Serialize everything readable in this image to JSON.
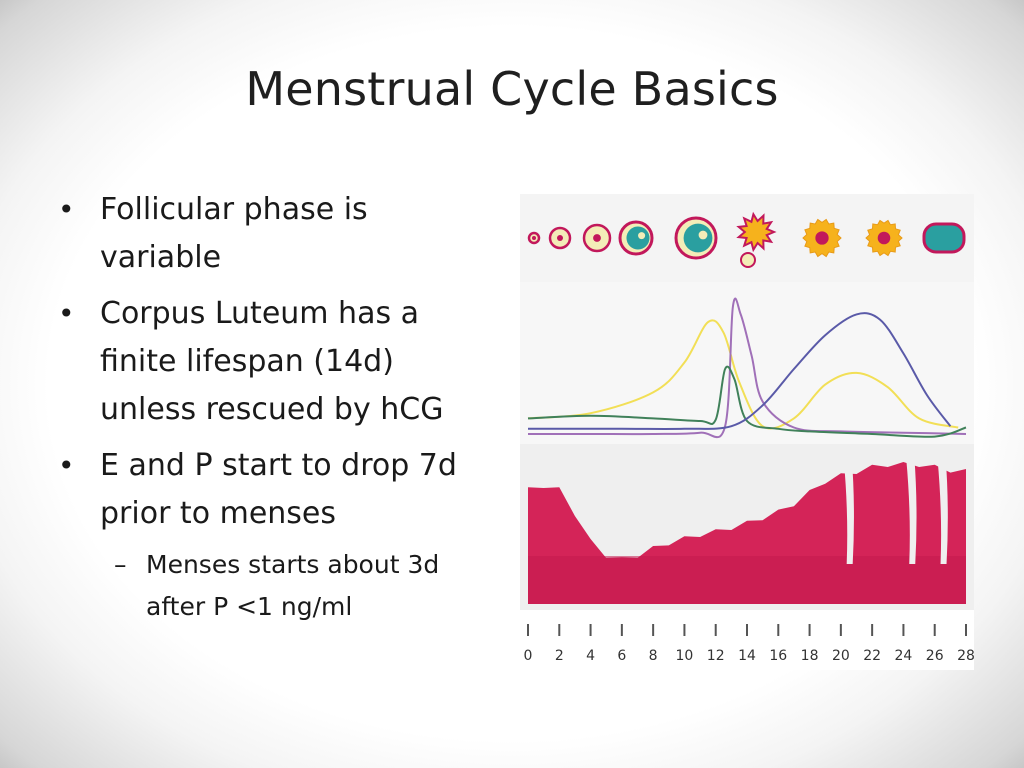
{
  "slide": {
    "title": "Menstrual Cycle Basics",
    "bullets": [
      {
        "text": "Follicular phase is variable"
      },
      {
        "text": "Corpus Luteum has a finite lifespan (14d) unless rescued by hCG"
      },
      {
        "text": "E and P start to drop 7d prior to menses"
      }
    ],
    "sub_bullets": [
      {
        "text": "Menses starts about 3d after P <1 ng/ml"
      }
    ],
    "bullet_marker": "•",
    "sub_bullet_marker": "–"
  },
  "chart_data": {
    "type": "line",
    "x_ticks": [
      "0",
      "2",
      "4",
      "6",
      "8",
      "10",
      "12",
      "14",
      "16",
      "18",
      "20",
      "22",
      "24",
      "26",
      "28"
    ],
    "xlim": [
      0,
      28
    ],
    "series": [
      {
        "color": "#f2df56",
        "x": [
          0,
          4,
          8,
          10,
          11.5,
          12.5,
          13.5,
          15,
          17,
          19,
          21,
          23,
          25,
          27.5
        ],
        "y": [
          0.12,
          0.16,
          0.32,
          0.55,
          0.86,
          0.78,
          0.4,
          0.06,
          0.12,
          0.38,
          0.47,
          0.36,
          0.12,
          0.05
        ]
      },
      {
        "color": "#a070b8",
        "x": [
          0,
          4,
          8,
          11,
          12.6,
          13.1,
          13.6,
          14.3,
          15,
          17,
          20,
          24,
          28
        ],
        "y": [
          0.0,
          0.0,
          0.0,
          0.01,
          0.06,
          0.98,
          0.92,
          0.6,
          0.25,
          0.05,
          0.02,
          0.01,
          0.0
        ]
      },
      {
        "color": "#40815a",
        "x": [
          0,
          4,
          8,
          11,
          12,
          12.6,
          13.2,
          14,
          16,
          18,
          22,
          26,
          28
        ],
        "y": [
          0.12,
          0.14,
          0.12,
          0.1,
          0.11,
          0.5,
          0.42,
          0.1,
          0.04,
          0.02,
          0.0,
          -0.02,
          0.05
        ]
      },
      {
        "color": "#5a5aa8",
        "x": [
          0,
          6,
          10,
          13,
          15,
          17,
          19,
          21,
          22.5,
          24,
          25.5,
          27
        ],
        "y": [
          0.04,
          0.04,
          0.04,
          0.06,
          0.22,
          0.5,
          0.76,
          0.92,
          0.88,
          0.62,
          0.3,
          0.06
        ]
      }
    ],
    "endometrium": {
      "color": "#d42458",
      "x": [
        0,
        1,
        2,
        3,
        4,
        5,
        6,
        7,
        8,
        9,
        10,
        11,
        12,
        13,
        14,
        15,
        16,
        17,
        18,
        19,
        20,
        21,
        22,
        23,
        24,
        25,
        26,
        27,
        28
      ],
      "thickness": [
        0.82,
        0.85,
        0.82,
        0.65,
        0.45,
        0.35,
        0.32,
        0.35,
        0.4,
        0.44,
        0.47,
        0.5,
        0.52,
        0.55,
        0.58,
        0.62,
        0.66,
        0.72,
        0.8,
        0.88,
        0.92,
        0.95,
        0.98,
        1.0,
        1.0,
        1.0,
        0.98,
        0.96,
        0.95
      ]
    },
    "follicles": {
      "fill": "#f3edb8",
      "ring": "#c2185b",
      "teal": "#2a9fa0",
      "corpus": "#f6b21c"
    }
  }
}
